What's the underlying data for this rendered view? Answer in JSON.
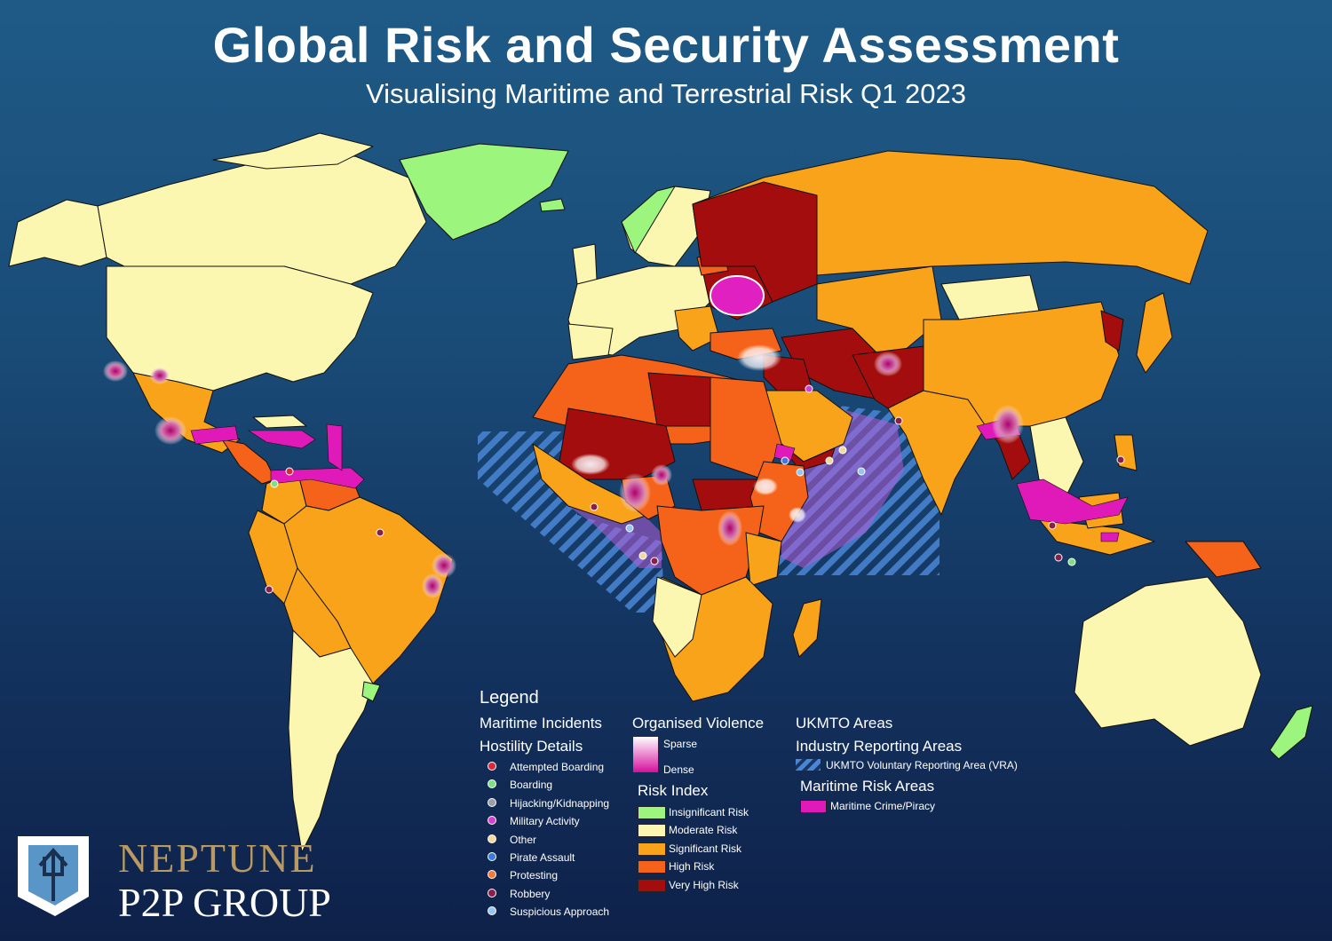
{
  "header": {
    "title": "Global Risk and Security Assessment",
    "subtitle": "Visualising Maritime and Terrestrial Risk Q1 2023"
  },
  "legend": {
    "title": "Legend",
    "maritime_incidents_heading": "Maritime Incidents",
    "hostility_heading": "Hostility Details",
    "hostility_items": [
      {
        "label": "Attempted Boarding",
        "color": "#d9293a"
      },
      {
        "label": "Boarding",
        "color": "#7fe07f"
      },
      {
        "label": "Hijacking/Kidnapping",
        "color": "#9aa0a8"
      },
      {
        "label": "Military Activity",
        "color": "#d63fd6"
      },
      {
        "label": "Other",
        "color": "#f2d9a0"
      },
      {
        "label": "Pirate Assault",
        "color": "#3d7bd9"
      },
      {
        "label": "Protesting",
        "color": "#f07a3a"
      },
      {
        "label": "Robbery",
        "color": "#8a1f4a"
      },
      {
        "label": "Suspicious Approach",
        "color": "#9ac4f0"
      }
    ],
    "violence_heading": "Organised Violence",
    "violence_sparse": "Sparse",
    "violence_dense": "Dense",
    "risk_heading": "Risk Index",
    "risk_items": [
      {
        "label": "Insignificant Risk",
        "color": "#9cf57c"
      },
      {
        "label": "Moderate Risk",
        "color": "#fbf6b0"
      },
      {
        "label": "Significant Risk",
        "color": "#f9a31b"
      },
      {
        "label": "High Risk",
        "color": "#f5621a"
      },
      {
        "label": "Very High Risk",
        "color": "#a30d0d"
      }
    ],
    "ukmto_heading": "UKMTO Areas",
    "industry_heading": "Industry Reporting Areas",
    "ukmto_item": "UKMTO Voluntary Reporting Area (VRA)",
    "maritime_risk_heading": "Maritime Risk Areas",
    "maritime_risk_item": "Maritime Crime/Piracy",
    "piracy_color": "#e01ab8"
  },
  "logo": {
    "line1": "NEPTUNE",
    "line2": "P2P GROUP"
  }
}
